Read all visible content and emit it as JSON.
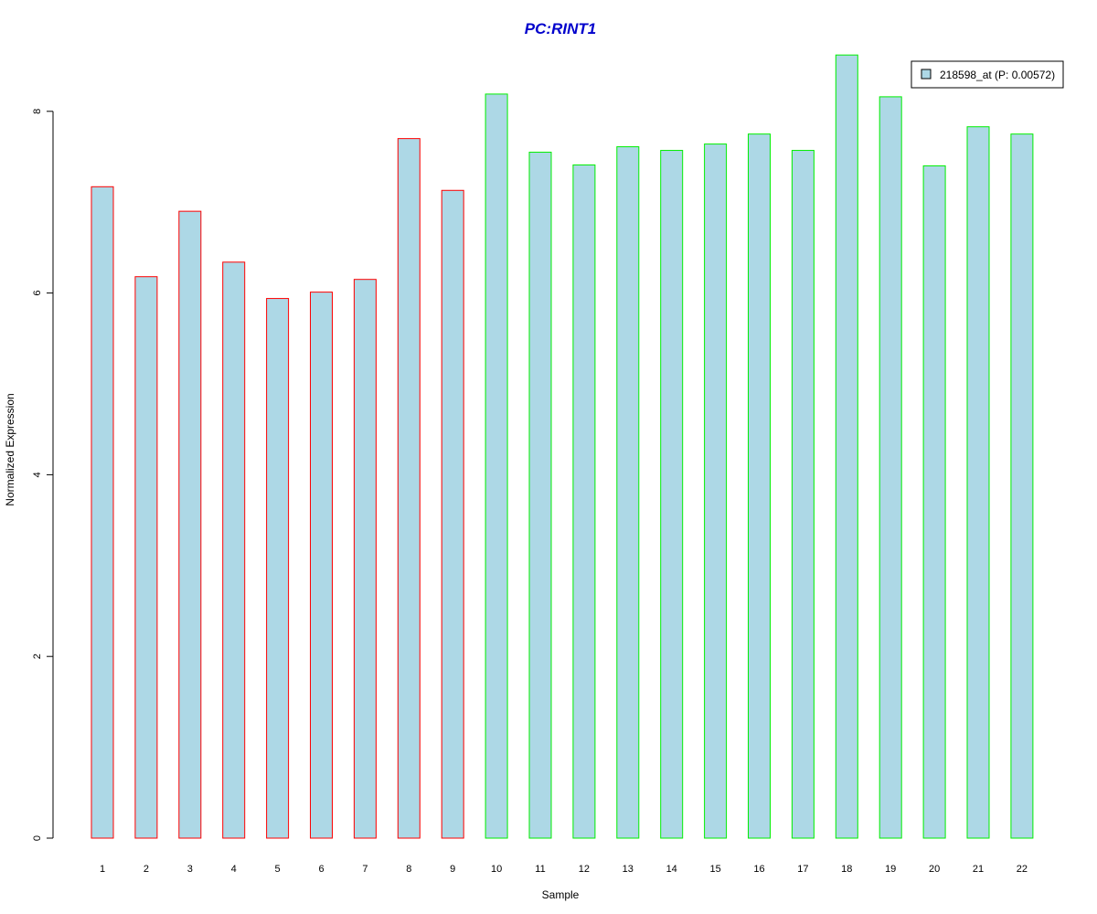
{
  "chart_data": {
    "type": "bar",
    "title": "PC:RINT1",
    "xlabel": "Sample",
    "ylabel": "Normalized Expression",
    "categories": [
      "1",
      "2",
      "3",
      "4",
      "5",
      "6",
      "7",
      "8",
      "9",
      "10",
      "11",
      "12",
      "13",
      "14",
      "15",
      "16",
      "17",
      "18",
      "19",
      "20",
      "21",
      "22"
    ],
    "series": [
      {
        "name": "218598_at (P: 0.00572)",
        "values": [
          7.17,
          6.18,
          6.9,
          6.34,
          5.94,
          6.01,
          6.15,
          7.7,
          7.13,
          8.19,
          7.55,
          7.41,
          7.61,
          7.57,
          7.64,
          7.75,
          7.57,
          8.62,
          8.16,
          7.4,
          7.83,
          7.75
        ]
      }
    ],
    "group_of_sample": [
      "a",
      "a",
      "a",
      "a",
      "a",
      "a",
      "a",
      "a",
      "a",
      "b",
      "b",
      "b",
      "b",
      "b",
      "b",
      "b",
      "b",
      "b",
      "b",
      "b",
      "b",
      "b"
    ],
    "ylim": [
      0,
      8.7
    ],
    "yticks": [
      0,
      2,
      4,
      6,
      8
    ],
    "grid": false,
    "legend_position": "top-right",
    "colors": {
      "title": "#0000cc",
      "bar_fill": "#add8e6",
      "group_a_border": "#ff0000",
      "group_b_border": "#00ee00",
      "axis": "#000000"
    }
  }
}
